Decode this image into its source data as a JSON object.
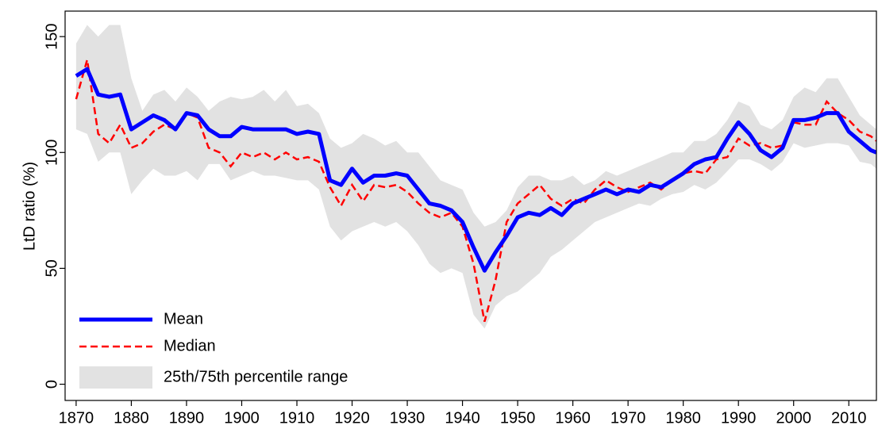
{
  "chart_data": {
    "type": "line",
    "y_label": "LtD ratio (%)",
    "x": [
      1870,
      1872,
      1874,
      1876,
      1878,
      1880,
      1882,
      1884,
      1886,
      1888,
      1890,
      1892,
      1894,
      1896,
      1898,
      1900,
      1902,
      1904,
      1906,
      1908,
      1910,
      1912,
      1914,
      1916,
      1918,
      1920,
      1922,
      1924,
      1926,
      1928,
      1930,
      1932,
      1934,
      1936,
      1938,
      1940,
      1942,
      1944,
      1946,
      1948,
      1950,
      1952,
      1954,
      1956,
      1958,
      1960,
      1962,
      1964,
      1966,
      1968,
      1970,
      1972,
      1974,
      1976,
      1978,
      1980,
      1982,
      1984,
      1986,
      1988,
      1990,
      1992,
      1994,
      1996,
      1998,
      2000,
      2002,
      2004,
      2006,
      2008,
      2010,
      2012,
      2014,
      2015
    ],
    "series": [
      {
        "name": "Mean",
        "color": "#0000ff",
        "style": "solid",
        "values": [
          133,
          136,
          125,
          124,
          125,
          110,
          113,
          116,
          114,
          110,
          117,
          116,
          110,
          107,
          107,
          111,
          110,
          110,
          110,
          110,
          108,
          109,
          108,
          88,
          86,
          93,
          87,
          90,
          90,
          91,
          90,
          84,
          78,
          77,
          75,
          70,
          59,
          49,
          57,
          64,
          72,
          74,
          73,
          76,
          73,
          78,
          80,
          82,
          84,
          82,
          84,
          83,
          86,
          85,
          88,
          91,
          95,
          97,
          98,
          106,
          113,
          108,
          101,
          98,
          102,
          114,
          114,
          115,
          117,
          117,
          109,
          105,
          101,
          100
        ]
      },
      {
        "name": "Median",
        "color": "#ff0000",
        "style": "dashed",
        "values": [
          123,
          140,
          108,
          104,
          112,
          102,
          104,
          109,
          112,
          110,
          117,
          115,
          102,
          100,
          94,
          100,
          98,
          100,
          97,
          100,
          97,
          98,
          96,
          85,
          77,
          86,
          79,
          86,
          85,
          86,
          83,
          78,
          74,
          72,
          74,
          68,
          52,
          27,
          45,
          70,
          78,
          82,
          86,
          80,
          77,
          80,
          78,
          84,
          88,
          85,
          83,
          85,
          87,
          84,
          88,
          91,
          92,
          91,
          97,
          98,
          106,
          103,
          104,
          102,
          103,
          113,
          112,
          112,
          122,
          117,
          114,
          109,
          107,
          105
        ]
      },
      {
        "name": "25th/75th percentile range",
        "color": "#e2e2e2",
        "style": "band",
        "upper": [
          147,
          155,
          150,
          155,
          155,
          132,
          118,
          125,
          127,
          122,
          128,
          124,
          118,
          122,
          124,
          123,
          124,
          127,
          122,
          127,
          120,
          121,
          117,
          106,
          102,
          104,
          108,
          106,
          103,
          105,
          100,
          100,
          94,
          88,
          86,
          84,
          74,
          68,
          70,
          75,
          85,
          90,
          90,
          88,
          88,
          90,
          86,
          88,
          92,
          90,
          92,
          94,
          96,
          98,
          100,
          100,
          105,
          105,
          108,
          114,
          122,
          120,
          112,
          110,
          114,
          124,
          128,
          126,
          132,
          132,
          124,
          116,
          112,
          110
        ],
        "lower": [
          110,
          108,
          96,
          100,
          100,
          82,
          88,
          93,
          90,
          90,
          92,
          88,
          95,
          95,
          88,
          90,
          92,
          90,
          90,
          89,
          88,
          88,
          84,
          68,
          62,
          66,
          68,
          70,
          68,
          70,
          66,
          60,
          52,
          48,
          50,
          48,
          30,
          24,
          34,
          38,
          40,
          44,
          48,
          55,
          58,
          62,
          66,
          70,
          72,
          74,
          76,
          78,
          77,
          80,
          82,
          83,
          86,
          84,
          87,
          92,
          97,
          97,
          95,
          92,
          96,
          104,
          102,
          103,
          104,
          104,
          103,
          96,
          95,
          93
        ]
      }
    ],
    "xlim": [
      1868,
      2015
    ],
    "ylim": [
      -7,
      161
    ],
    "xticks": [
      1870,
      1880,
      1890,
      1900,
      1910,
      1920,
      1930,
      1940,
      1950,
      1960,
      1970,
      1980,
      1990,
      2000,
      2010
    ],
    "yticks": [
      0,
      50,
      100,
      150
    ],
    "grid": false,
    "legend": "lower left"
  }
}
